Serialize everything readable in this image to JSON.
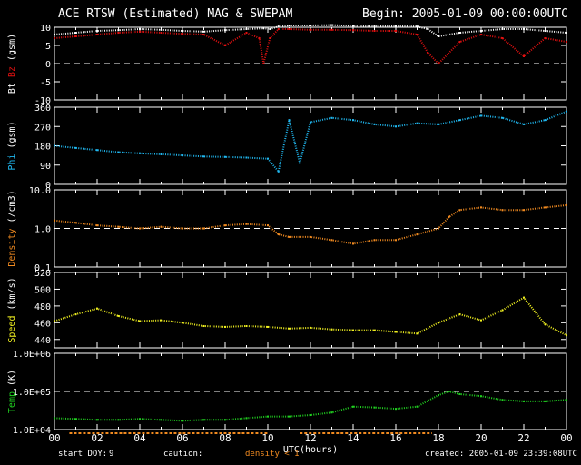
{
  "header": {
    "title": "ACE RTSW (Estimated) MAG & SWEPAM",
    "begin": "Begin: 2005-01-09 00:00:00UTC"
  },
  "footer": {
    "start_doy_label": "start DOY:",
    "start_doy_value": "9",
    "caution_label": "caution:",
    "density_caution": "density < 1",
    "created": "created: 2005-01-09 23:39:08UTC"
  },
  "colors": {
    "bt": "#ffffff",
    "bz": "#e01010",
    "phi": "#20b8f0",
    "density": "#f08a20",
    "speed": "#f0f020",
    "temp": "#20d020",
    "caution_bar": "#f08a20",
    "frame": "#ffffff",
    "background": "#000000"
  },
  "chart_data": {
    "type": "scatter",
    "x_axis": {
      "label": "UTC(hours)",
      "ticks": [
        "00",
        "02",
        "04",
        "06",
        "08",
        "10",
        "12",
        "14",
        "16",
        "18",
        "20",
        "22",
        "00"
      ],
      "range": [
        0,
        24
      ]
    },
    "panels": [
      {
        "id": "mag",
        "ylabel_parts": [
          "Bt",
          "Bz",
          "(gsm)"
        ],
        "yscale": "linear",
        "ylim": [
          -10,
          10
        ],
        "yticks": [
          "10",
          "5",
          "0",
          "-5",
          "-10"
        ],
        "reference_lines": [
          0
        ],
        "series": [
          {
            "name": "Bt",
            "color_key": "bt",
            "x": [
              0,
              1,
              2,
              3,
              4,
              5,
              6,
              7,
              8,
              9,
              9.8,
              10.1,
              10.5,
              11,
              12,
              13,
              14,
              15,
              16,
              17,
              17.5,
              18,
              19,
              20,
              21,
              22,
              23,
              24
            ],
            "y": [
              8,
              8.5,
              9,
              9.2,
              9.5,
              9.3,
              9,
              8.8,
              9.2,
              9.5,
              9.7,
              9.5,
              10.2,
              10.5,
              10.5,
              10.6,
              10.4,
              10.3,
              10.3,
              10.2,
              9.5,
              7.5,
              8.5,
              9,
              9.5,
              9.5,
              9,
              8.5
            ]
          },
          {
            "name": "Bz",
            "color_key": "bz",
            "x": [
              0,
              1,
              2,
              3,
              4,
              5,
              6,
              7,
              8,
              9,
              9.6,
              9.8,
              10.1,
              10.5,
              11,
              12,
              13,
              14,
              15,
              16,
              17,
              17.5,
              18,
              19,
              20,
              21,
              22,
              23,
              24
            ],
            "y": [
              7,
              7.5,
              8,
              8.5,
              8.8,
              8.5,
              8.2,
              8,
              5,
              8.5,
              7,
              0,
              7,
              9.5,
              9.5,
              9.3,
              9.3,
              9.2,
              9,
              9,
              8,
              3,
              0,
              6,
              8,
              7,
              2,
              7,
              6
            ]
          }
        ]
      },
      {
        "id": "phi",
        "ylabel_parts": [
          "Phi",
          "(gsm)"
        ],
        "yscale": "linear",
        "ylim": [
          0,
          360
        ],
        "yticks": [
          "360",
          "270",
          "180",
          "90",
          "0"
        ],
        "series": [
          {
            "name": "Phi",
            "color_key": "phi",
            "x": [
              0,
              1,
              2,
              3,
              4,
              5,
              6,
              7,
              8,
              9,
              10,
              10.5,
              11,
              11.5,
              12,
              13,
              14,
              15,
              16,
              17,
              18,
              19,
              20,
              21,
              22,
              23,
              24
            ],
            "y": [
              180,
              170,
              160,
              150,
              145,
              140,
              135,
              130,
              128,
              125,
              120,
              60,
              300,
              100,
              290,
              310,
              300,
              280,
              270,
              285,
              280,
              300,
              320,
              310,
              280,
              300,
              340
            ]
          }
        ]
      },
      {
        "id": "density",
        "ylabel_parts": [
          "Density",
          "(/cm3)"
        ],
        "yscale": "log",
        "ylim": [
          0.1,
          10
        ],
        "yticks": [
          "10.0",
          "1.0",
          "0.1"
        ],
        "reference_lines": [
          1
        ],
        "series": [
          {
            "name": "Density",
            "color_key": "density",
            "x": [
              0,
              1,
              2,
              3,
              4,
              5,
              6,
              7,
              8,
              9,
              10,
              10.5,
              11,
              12,
              13,
              14,
              15,
              16,
              17,
              18,
              18.5,
              19,
              20,
              21,
              22,
              23,
              24
            ],
            "y": [
              1.6,
              1.4,
              1.2,
              1.1,
              1.0,
              1.1,
              1.0,
              1.0,
              1.2,
              1.3,
              1.2,
              0.7,
              0.6,
              0.6,
              0.5,
              0.4,
              0.5,
              0.5,
              0.7,
              1.0,
              2.0,
              3.0,
              3.5,
              3.0,
              3.0,
              3.5,
              4.0
            ]
          }
        ]
      },
      {
        "id": "speed",
        "ylabel_parts": [
          "Speed",
          "(km/s)"
        ],
        "yscale": "linear",
        "ylim": [
          430,
          520
        ],
        "yticks": [
          "520",
          "500",
          "480",
          "460",
          "440"
        ],
        "series": [
          {
            "name": "Speed",
            "color_key": "speed",
            "x": [
              0,
              1,
              2,
              3,
              4,
              5,
              6,
              7,
              8,
              9,
              10,
              11,
              12,
              13,
              14,
              15,
              16,
              17,
              18,
              19,
              20,
              21,
              22,
              23,
              24
            ],
            "y": [
              462,
              470,
              477,
              468,
              462,
              463,
              460,
              456,
              455,
              456,
              455,
              453,
              454,
              452,
              451,
              451,
              449,
              447,
              460,
              470,
              463,
              475,
              490,
              458,
              445
            ]
          }
        ]
      },
      {
        "id": "temp",
        "ylabel_parts": [
          "Temp",
          "(K)"
        ],
        "yscale": "log",
        "ylim": [
          10000,
          1000000
        ],
        "yticks": [
          "1.0E+06",
          "1.0E+05",
          "1.0E+04"
        ],
        "reference_lines": [
          100000
        ],
        "series": [
          {
            "name": "Temp",
            "color_key": "temp",
            "x": [
              0,
              1,
              2,
              3,
              4,
              5,
              6,
              7,
              8,
              9,
              10,
              11,
              12,
              13,
              14,
              15,
              16,
              17,
              18,
              18.5,
              19,
              20,
              21,
              22,
              23,
              24
            ],
            "y": [
              20000,
              19000,
              18000,
              18000,
              19000,
              18000,
              17000,
              18000,
              18000,
              20000,
              22000,
              22000,
              24000,
              28000,
              40000,
              38000,
              35000,
              40000,
              80000,
              100000,
              85000,
              75000,
              60000,
              55000,
              55000,
              60000
            ]
          }
        ]
      }
    ],
    "caution_segments_hours": [
      [
        0.7,
        10
      ],
      [
        11.5,
        17.7
      ]
    ]
  }
}
